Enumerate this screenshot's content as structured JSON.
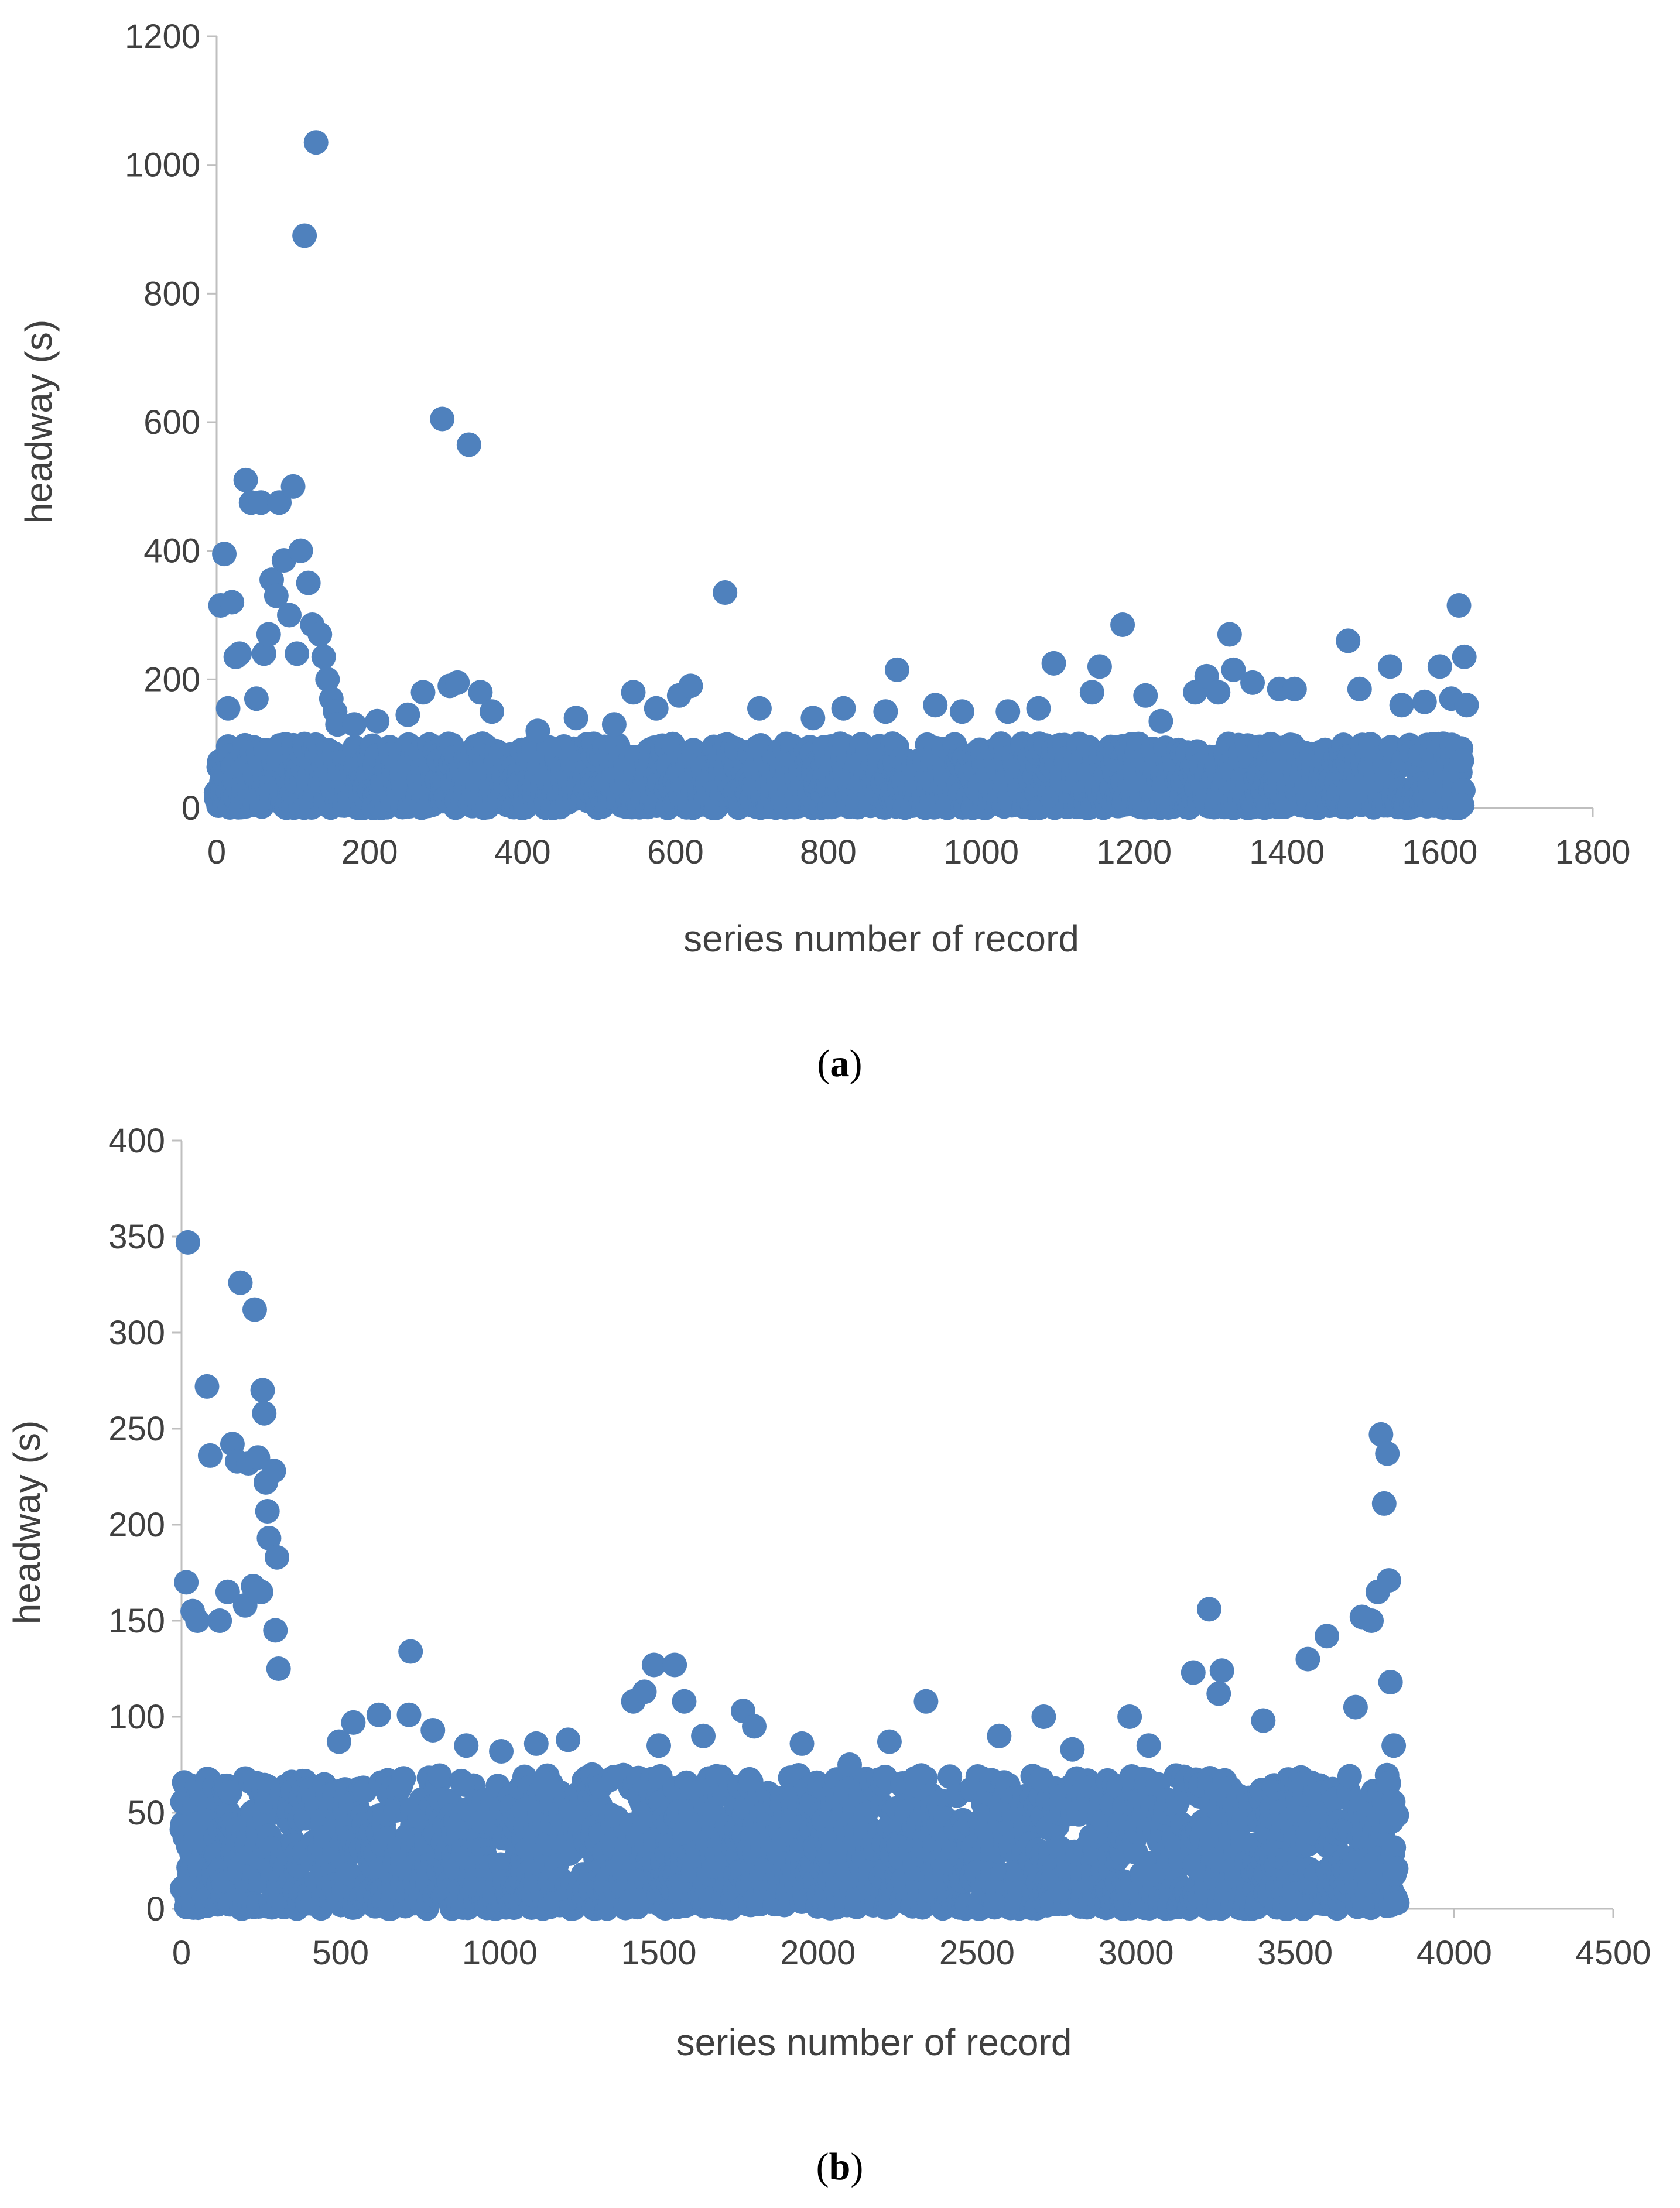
{
  "chart_data": [
    {
      "type": "scatter",
      "panel_label": "a",
      "caption_open": "(",
      "caption_close": ")",
      "xlabel": "series number of record",
      "ylabel": "headway (s)",
      "xlim": [
        0,
        1800
      ],
      "ylim": [
        0,
        1200
      ],
      "xticks": [
        0,
        200,
        400,
        600,
        800,
        1000,
        1200,
        1400,
        1600,
        1800
      ],
      "yticks": [
        0,
        200,
        400,
        600,
        800,
        1000,
        1200
      ],
      "grid": false,
      "legend": "none",
      "marker_color": "#4f81bd",
      "series_length": 1630,
      "points": [
        [
          5,
          315
        ],
        [
          10,
          395
        ],
        [
          15,
          155
        ],
        [
          20,
          320
        ],
        [
          25,
          235
        ],
        [
          30,
          240
        ],
        [
          38,
          510
        ],
        [
          45,
          475
        ],
        [
          52,
          170
        ],
        [
          58,
          475
        ],
        [
          62,
          240
        ],
        [
          68,
          270
        ],
        [
          72,
          355
        ],
        [
          78,
          330
        ],
        [
          82,
          475
        ],
        [
          88,
          385
        ],
        [
          95,
          300
        ],
        [
          100,
          500
        ],
        [
          105,
          240
        ],
        [
          110,
          400
        ],
        [
          115,
          890
        ],
        [
          120,
          350
        ],
        [
          125,
          285
        ],
        [
          130,
          1035
        ],
        [
          135,
          270
        ],
        [
          140,
          235
        ],
        [
          145,
          200
        ],
        [
          150,
          170
        ],
        [
          155,
          150
        ],
        [
          158,
          130
        ],
        [
          180,
          130
        ],
        [
          210,
          135
        ],
        [
          250,
          145
        ],
        [
          270,
          180
        ],
        [
          295,
          605
        ],
        [
          305,
          190
        ],
        [
          315,
          195
        ],
        [
          330,
          565
        ],
        [
          345,
          180
        ],
        [
          360,
          150
        ],
        [
          420,
          120
        ],
        [
          470,
          140
        ],
        [
          520,
          130
        ],
        [
          545,
          180
        ],
        [
          575,
          155
        ],
        [
          605,
          175
        ],
        [
          620,
          190
        ],
        [
          665,
          335
        ],
        [
          710,
          155
        ],
        [
          780,
          140
        ],
        [
          820,
          155
        ],
        [
          875,
          150
        ],
        [
          890,
          215
        ],
        [
          940,
          160
        ],
        [
          975,
          150
        ],
        [
          1035,
          150
        ],
        [
          1075,
          155
        ],
        [
          1095,
          225
        ],
        [
          1145,
          180
        ],
        [
          1155,
          220
        ],
        [
          1185,
          285
        ],
        [
          1215,
          175
        ],
        [
          1235,
          135
        ],
        [
          1280,
          180
        ],
        [
          1295,
          205
        ],
        [
          1310,
          180
        ],
        [
          1325,
          270
        ],
        [
          1330,
          215
        ],
        [
          1355,
          195
        ],
        [
          1390,
          185
        ],
        [
          1410,
          185
        ],
        [
          1480,
          260
        ],
        [
          1495,
          185
        ],
        [
          1535,
          220
        ],
        [
          1550,
          160
        ],
        [
          1580,
          165
        ],
        [
          1600,
          220
        ],
        [
          1615,
          170
        ],
        [
          1625,
          315
        ],
        [
          1632,
          235
        ],
        [
          1635,
          160
        ]
      ],
      "band": {
        "min": 0,
        "max": 100,
        "density": 8
      }
    },
    {
      "type": "scatter",
      "panel_label": "b",
      "caption_open": "(",
      "caption_close": ")",
      "xlabel": "series number of record",
      "ylabel": "headway (s)",
      "xlim": [
        0,
        4500
      ],
      "ylim": [
        0,
        400
      ],
      "xticks": [
        0,
        500,
        1000,
        1500,
        2000,
        2500,
        3000,
        3500,
        4000,
        4500
      ],
      "yticks": [
        0,
        50,
        100,
        150,
        200,
        250,
        300,
        350,
        400
      ],
      "grid": false,
      "legend": "none",
      "marker_color": "#4f81bd",
      "series_length": 3820,
      "points": [
        [
          15,
          170
        ],
        [
          20,
          347
        ],
        [
          35,
          155
        ],
        [
          50,
          150
        ],
        [
          80,
          272
        ],
        [
          90,
          236
        ],
        [
          120,
          150
        ],
        [
          145,
          165
        ],
        [
          160,
          242
        ],
        [
          175,
          233
        ],
        [
          185,
          326
        ],
        [
          200,
          158
        ],
        [
          210,
          232
        ],
        [
          225,
          168
        ],
        [
          230,
          312
        ],
        [
          240,
          235
        ],
        [
          250,
          165
        ],
        [
          255,
          270
        ],
        [
          260,
          258
        ],
        [
          265,
          222
        ],
        [
          270,
          207
        ],
        [
          275,
          193
        ],
        [
          290,
          228
        ],
        [
          295,
          145
        ],
        [
          300,
          183
        ],
        [
          305,
          125
        ],
        [
          495,
          87
        ],
        [
          540,
          97
        ],
        [
          620,
          101
        ],
        [
          715,
          101
        ],
        [
          720,
          134
        ],
        [
          790,
          93
        ],
        [
          895,
          85
        ],
        [
          1005,
          82
        ],
        [
          1115,
          86
        ],
        [
          1215,
          88
        ],
        [
          1420,
          108
        ],
        [
          1455,
          113
        ],
        [
          1485,
          127
        ],
        [
          1500,
          85
        ],
        [
          1550,
          127
        ],
        [
          1580,
          108
        ],
        [
          1640,
          90
        ],
        [
          1765,
          103
        ],
        [
          1800,
          95
        ],
        [
          1950,
          86
        ],
        [
          2100,
          75
        ],
        [
          2225,
          87
        ],
        [
          2340,
          108
        ],
        [
          2570,
          90
        ],
        [
          2710,
          100
        ],
        [
          2800,
          83
        ],
        [
          2980,
          100
        ],
        [
          3040,
          85
        ],
        [
          3180,
          123
        ],
        [
          3230,
          156
        ],
        [
          3260,
          112
        ],
        [
          3270,
          124
        ],
        [
          3400,
          98
        ],
        [
          3540,
          130
        ],
        [
          3600,
          142
        ],
        [
          3690,
          105
        ],
        [
          3710,
          152
        ],
        [
          3740,
          150
        ],
        [
          3760,
          165
        ],
        [
          3770,
          247
        ],
        [
          3780,
          211
        ],
        [
          3790,
          237
        ],
        [
          3795,
          171
        ],
        [
          3800,
          118
        ],
        [
          3810,
          85
        ]
      ],
      "band": {
        "min": 0,
        "max": 70,
        "density": 8
      }
    }
  ]
}
